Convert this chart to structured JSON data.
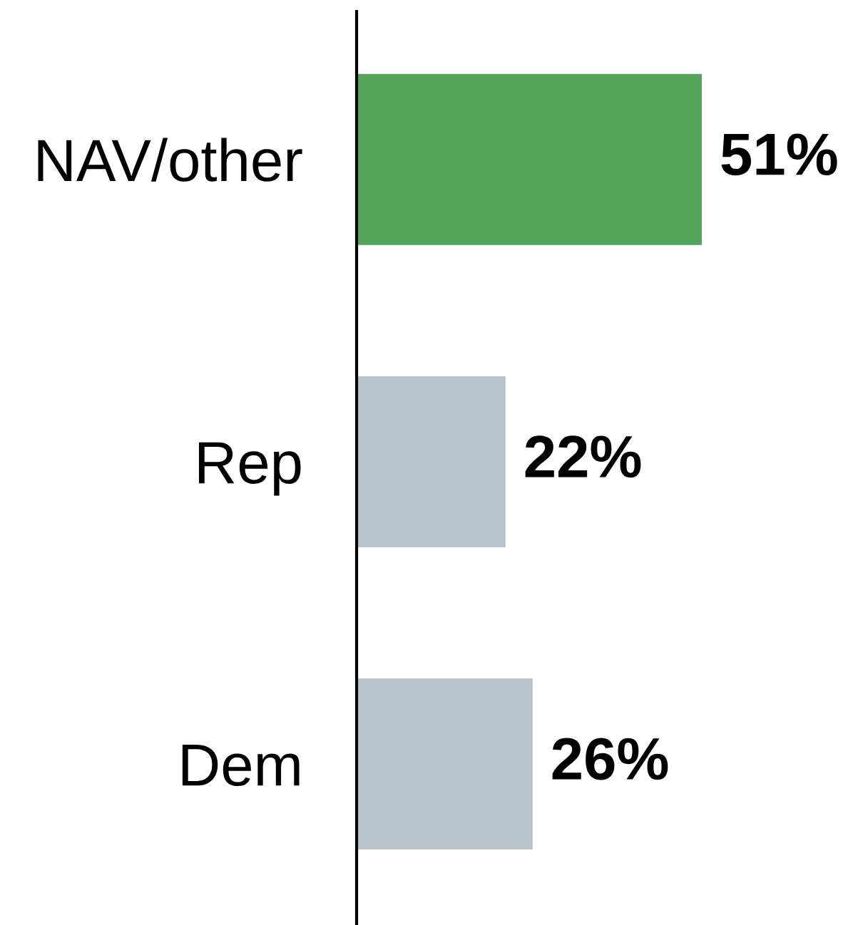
{
  "chart_data": {
    "type": "bar",
    "orientation": "horizontal",
    "categories": [
      "NAV/other",
      "Rep",
      "Dem"
    ],
    "values": [
      51,
      22,
      26
    ],
    "colors": [
      "#53a459",
      "#b9c3c9",
      "#b9c3c9"
    ],
    "value_labels": [
      "51%",
      "22%",
      "26%"
    ],
    "tick_labels": "y"
  }
}
